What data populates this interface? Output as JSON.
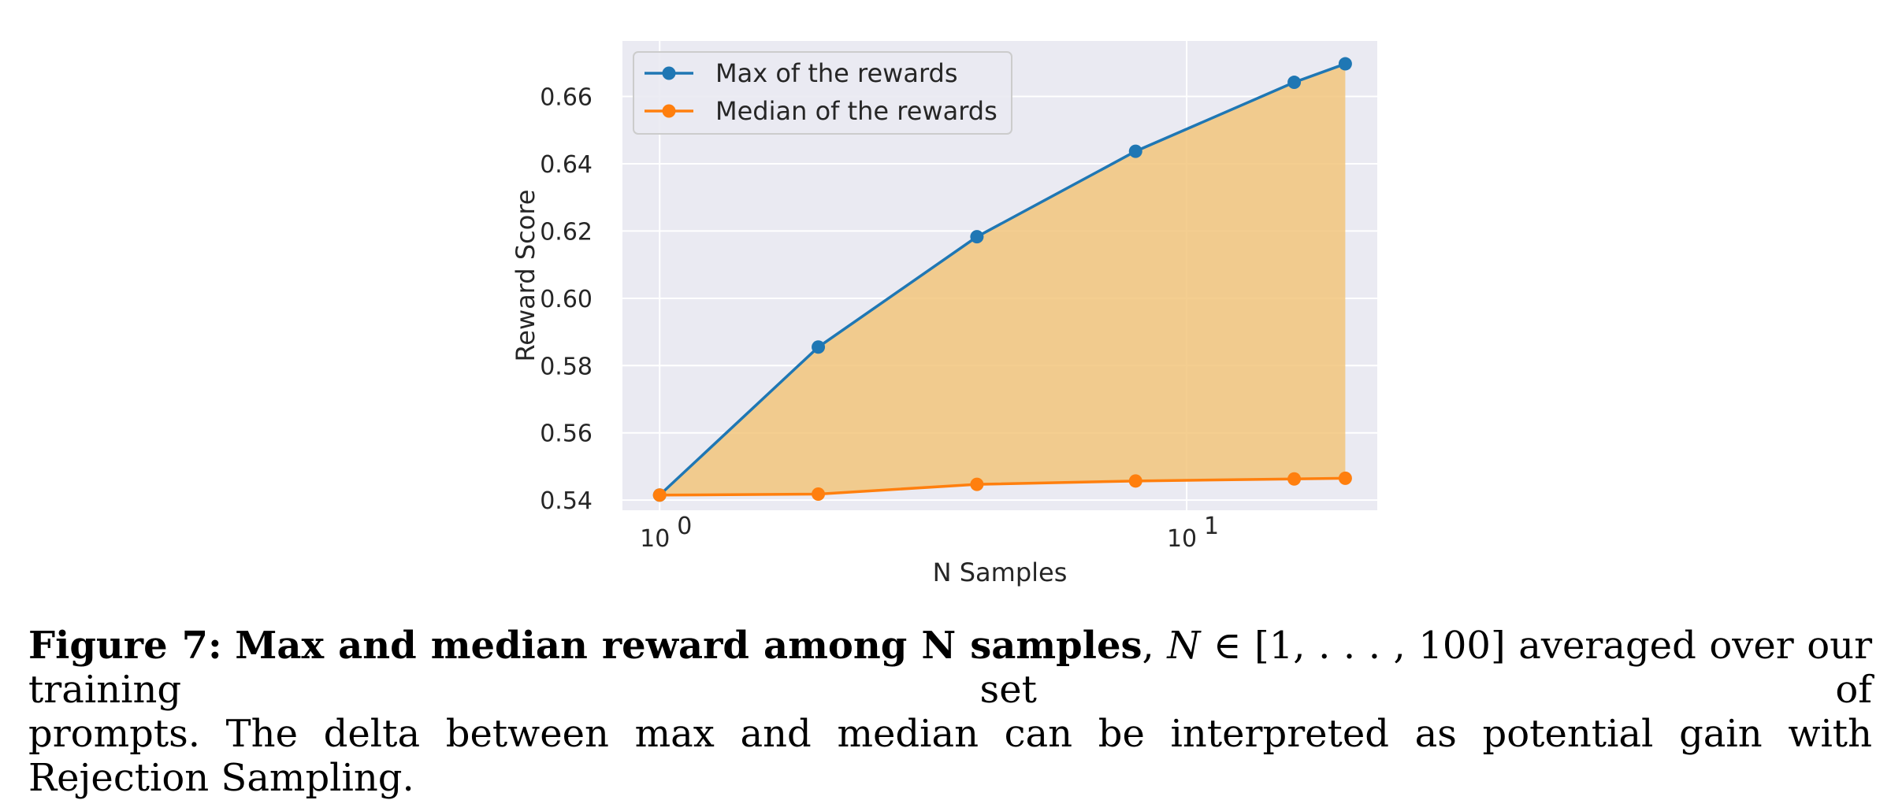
{
  "chart_data": {
    "type": "line",
    "xlabel": "N Samples",
    "ylabel": "Reward Score",
    "xscale": "log",
    "xlim": [
      0.85,
      23
    ],
    "ylim": [
      0.537,
      0.6765
    ],
    "x_ticks": [
      {
        "value": 1,
        "label_base": "10",
        "label_exp": "0"
      },
      {
        "value": 10,
        "label_base": "10",
        "label_exp": "1"
      }
    ],
    "y_ticks": [
      {
        "value": 0.54,
        "label": "0.54"
      },
      {
        "value": 0.56,
        "label": "0.56"
      },
      {
        "value": 0.58,
        "label": "0.58"
      },
      {
        "value": 0.6,
        "label": "0.60"
      },
      {
        "value": 0.62,
        "label": "0.62"
      },
      {
        "value": 0.64,
        "label": "0.64"
      },
      {
        "value": 0.66,
        "label": "0.66"
      }
    ],
    "x": [
      1,
      2,
      4,
      8,
      16,
      20
    ],
    "series": [
      {
        "name": "Max of the rewards",
        "color": "#1f77b4",
        "values": [
          0.5415,
          0.5855,
          0.6183,
          0.6437,
          0.6642,
          0.6697
        ]
      },
      {
        "name": "Median of the rewards",
        "color": "#ff7f0e",
        "values": [
          0.5415,
          0.5418,
          0.5447,
          0.5457,
          0.5463,
          0.5465
        ]
      }
    ],
    "fill_between": {
      "color": "#f2c57c",
      "between": [
        "Max of the rewards",
        "Median of the rewards"
      ]
    },
    "grid": true,
    "background": "#eaeaf2",
    "legend_position": "top-left"
  },
  "caption": {
    "label": "Figure 7:",
    "title": "Max and median reward among N samples",
    "math_var": "N",
    "math_range": "[1, . . . , 100]",
    "line1_rest": " averaged over our training set of",
    "line2": "prompts. The delta between max and median can be interpreted as potential gain with Rejection Sampling."
  }
}
